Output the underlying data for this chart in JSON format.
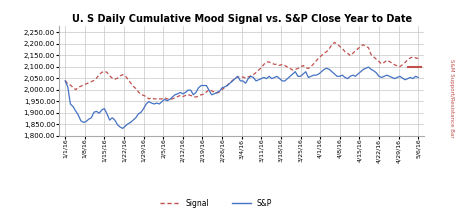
{
  "title": "U. S Daily Cumulative Mood Signal vs. S&P Close Year to Date",
  "title_fontsize": 7.5,
  "ylim": [
    1800,
    2275
  ],
  "yticks": [
    1800,
    1850,
    1900,
    1950,
    2000,
    2050,
    2100,
    2150,
    2200,
    2250
  ],
  "x_labels": [
    "1/1/16",
    "1/8/16",
    "1/15/16",
    "1/22/16",
    "1/29/16",
    "2/5/16",
    "2/12/16",
    "2/19/16",
    "2/26/16",
    "3/4/16",
    "3/11/16",
    "3/18/16",
    "3/25/16",
    "4/1/16",
    "4/8/16",
    "4/15/16",
    "4/22/16",
    "4/29/16",
    "5/6/16"
  ],
  "signal_color": "#C0504D",
  "sp_color": "#4472C4",
  "resistance_color": "#C0504D",
  "resistance_level": 2100,
  "background_color": "#FFFFFF",
  "grid_color": "#C8C8C8",
  "legend_signal_label": "Signal",
  "legend_sp_label": "S&P",
  "right_label": "S&M Support/Resistance Bar",
  "signal_data": [
    2040,
    2025,
    2020,
    2010,
    2000,
    2010,
    2015,
    2020,
    2025,
    2030,
    2035,
    2040,
    2050,
    2065,
    2075,
    2080,
    2075,
    2060,
    2050,
    2045,
    2050,
    2060,
    2065,
    2060,
    2045,
    2030,
    2015,
    2005,
    1990,
    1980,
    1975,
    1970,
    1960,
    1965,
    1960,
    1960,
    1960,
    1960,
    1965,
    1960,
    1958,
    1960,
    1965,
    1970,
    1975,
    1970,
    1975,
    1978,
    1975,
    1970,
    1968,
    1972,
    1978,
    1980,
    1990,
    2000,
    1995,
    1990,
    1985,
    1990,
    2000,
    2010,
    2020,
    2030,
    2040,
    2050,
    2055,
    2055,
    2055,
    2050,
    2055,
    2060,
    2065,
    2075,
    2085,
    2095,
    2110,
    2120,
    2120,
    2115,
    2110,
    2110,
    2105,
    2110,
    2105,
    2098,
    2092,
    2085,
    2088,
    2092,
    2098,
    2105,
    2095,
    2092,
    2100,
    2112,
    2125,
    2138,
    2148,
    2158,
    2165,
    2178,
    2195,
    2205,
    2198,
    2188,
    2178,
    2165,
    2158,
    2148,
    2158,
    2168,
    2178,
    2188,
    2195,
    2188,
    2182,
    2152,
    2142,
    2132,
    2122,
    2112,
    2118,
    2128,
    2122,
    2115,
    2108,
    2103,
    2100,
    2108,
    2118,
    2130,
    2138,
    2142,
    2138,
    2135
  ],
  "sp_data": [
    2038,
    2012,
    1938,
    1927,
    1908,
    1890,
    1865,
    1858,
    1862,
    1872,
    1878,
    1902,
    1906,
    1898,
    1912,
    1918,
    1895,
    1868,
    1878,
    1868,
    1848,
    1838,
    1832,
    1842,
    1852,
    1858,
    1868,
    1878,
    1895,
    1902,
    1918,
    1938,
    1948,
    1942,
    1938,
    1942,
    1938,
    1948,
    1958,
    1952,
    1958,
    1968,
    1978,
    1982,
    1988,
    1982,
    1988,
    1998,
    1998,
    1978,
    1988,
    2008,
    2018,
    2018,
    2018,
    1998,
    1978,
    1982,
    1988,
    1993,
    2008,
    2012,
    2018,
    2028,
    2038,
    2048,
    2058,
    2038,
    2038,
    2028,
    2048,
    2058,
    2053,
    2038,
    2043,
    2048,
    2053,
    2048,
    2058,
    2048,
    2053,
    2058,
    2048,
    2038,
    2038,
    2048,
    2058,
    2068,
    2078,
    2058,
    2058,
    2068,
    2078,
    2053,
    2058,
    2063,
    2063,
    2068,
    2078,
    2088,
    2093,
    2088,
    2078,
    2068,
    2058,
    2058,
    2063,
    2053,
    2048,
    2058,
    2063,
    2058,
    2068,
    2078,
    2088,
    2093,
    2098,
    2088,
    2082,
    2073,
    2058,
    2053,
    2058,
    2063,
    2058,
    2053,
    2048,
    2053,
    2058,
    2050,
    2043,
    2048,
    2053,
    2048,
    2058,
    2053
  ]
}
